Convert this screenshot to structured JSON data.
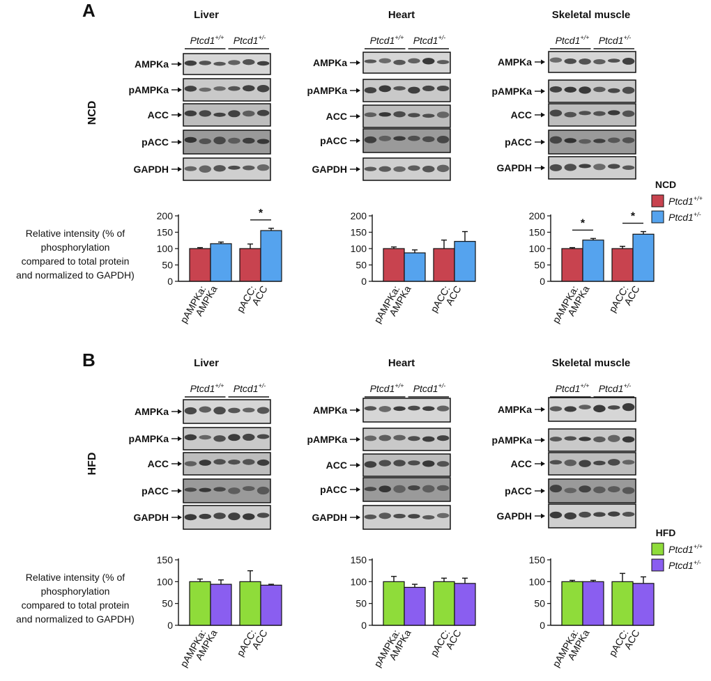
{
  "panel_a": {
    "letter": "A",
    "diet_label": "NCD",
    "legend": {
      "title": "NCD",
      "wt": "Ptcd1",
      "wt_sup": "+/+",
      "het": "Ptcd1",
      "het_sup": "+/-"
    },
    "colors": {
      "wt": "#c8434f",
      "het": "#55a3ee"
    }
  },
  "panel_b": {
    "letter": "B",
    "diet_label": "HFD",
    "legend": {
      "title": "HFD",
      "wt": "Ptcd1",
      "wt_sup": "+/+",
      "het": "Ptcd1",
      "het_sup": "+/-"
    },
    "colors": {
      "wt": "#8fdc3a",
      "het": "#8a5ef0"
    }
  },
  "tissues": [
    "Liver",
    "Heart",
    "Skeletal muscle"
  ],
  "genotypes": {
    "wt": "Ptcd1",
    "wt_sup": "+/+",
    "het": "Ptcd1",
    "het_sup": "+/-"
  },
  "blot_labels": [
    "AMPKa",
    "pAMPKa",
    "ACC",
    "pACC",
    "GAPDH"
  ],
  "ylabel_lines": [
    "Relative intensity (% of",
    "phosphorylation",
    "compared to total protein",
    "and normalized to GAPDH)"
  ],
  "star": "*",
  "chart_data": [
    {
      "type": "bar",
      "panel": "A",
      "diet": "NCD",
      "tissue": "Liver",
      "categories": [
        "pAMPKa:\nAMPKa",
        "pACC:\nACC"
      ],
      "series": [
        {
          "name": "Ptcd1 +/+",
          "values": [
            100,
            100
          ],
          "errors": [
            3,
            14
          ]
        },
        {
          "name": "Ptcd1 +/-",
          "values": [
            115,
            155
          ],
          "errors": [
            5,
            7
          ]
        }
      ],
      "significance": [
        {
          "category": 1,
          "label": "*"
        }
      ],
      "yticks": [
        0,
        50,
        100,
        150,
        200
      ],
      "ylim": [
        0,
        200
      ]
    },
    {
      "type": "bar",
      "panel": "A",
      "diet": "NCD",
      "tissue": "Heart",
      "categories": [
        "pAMPKa:\nAMPKa",
        "pACC:\nACC"
      ],
      "series": [
        {
          "name": "Ptcd1 +/+",
          "values": [
            100,
            100
          ],
          "errors": [
            5,
            26
          ]
        },
        {
          "name": "Ptcd1 +/-",
          "values": [
            87,
            122
          ],
          "errors": [
            9,
            30
          ]
        }
      ],
      "significance": [],
      "yticks": [
        0,
        50,
        100,
        150,
        200
      ],
      "ylim": [
        0,
        200
      ]
    },
    {
      "type": "bar",
      "panel": "A",
      "diet": "NCD",
      "tissue": "Skeletal muscle",
      "categories": [
        "pAMPKa:\nAMPKa",
        "pACC:\nACC"
      ],
      "series": [
        {
          "name": "Ptcd1 +/+",
          "values": [
            100,
            100
          ],
          "errors": [
            3,
            7
          ]
        },
        {
          "name": "Ptcd1 +/-",
          "values": [
            126,
            144
          ],
          "errors": [
            5,
            8
          ]
        }
      ],
      "significance": [
        {
          "category": 0,
          "label": "*"
        },
        {
          "category": 1,
          "label": "*"
        }
      ],
      "yticks": [
        0,
        50,
        100,
        150,
        200
      ],
      "ylim": [
        0,
        200
      ]
    },
    {
      "type": "bar",
      "panel": "B",
      "diet": "HFD",
      "tissue": "Liver",
      "categories": [
        "pAMPKa:\nAMPKa",
        "pACC:\nACC"
      ],
      "series": [
        {
          "name": "Ptcd1 +/+",
          "values": [
            100,
            100
          ],
          "errors": [
            6,
            25
          ]
        },
        {
          "name": "Ptcd1 +/-",
          "values": [
            94,
            92
          ],
          "errors": [
            10,
            2
          ]
        }
      ],
      "significance": [],
      "yticks": [
        0,
        50,
        100,
        150
      ],
      "ylim": [
        0,
        150
      ]
    },
    {
      "type": "bar",
      "panel": "B",
      "diet": "HFD",
      "tissue": "Heart",
      "categories": [
        "pAMPKa:\nAMPKa",
        "pACC:\nACC"
      ],
      "series": [
        {
          "name": "Ptcd1 +/+",
          "values": [
            100,
            100
          ],
          "errors": [
            12,
            8
          ]
        },
        {
          "name": "Ptcd1 +/-",
          "values": [
            87,
            96
          ],
          "errors": [
            7,
            12
          ]
        }
      ],
      "significance": [],
      "yticks": [
        0,
        50,
        100,
        150
      ],
      "ylim": [
        0,
        150
      ]
    },
    {
      "type": "bar",
      "panel": "B",
      "diet": "HFD",
      "tissue": "Skeletal muscle",
      "categories": [
        "pAMPKa:\nAMPKa",
        "pACC:\nACC"
      ],
      "series": [
        {
          "name": "Ptcd1 +/+",
          "values": [
            100,
            100
          ],
          "errors": [
            3,
            19
          ]
        },
        {
          "name": "Ptcd1 +/-",
          "values": [
            100,
            96
          ],
          "errors": [
            3,
            15
          ]
        }
      ],
      "significance": [],
      "yticks": [
        0,
        50,
        100,
        150
      ],
      "ylim": [
        0,
        150
      ]
    }
  ]
}
